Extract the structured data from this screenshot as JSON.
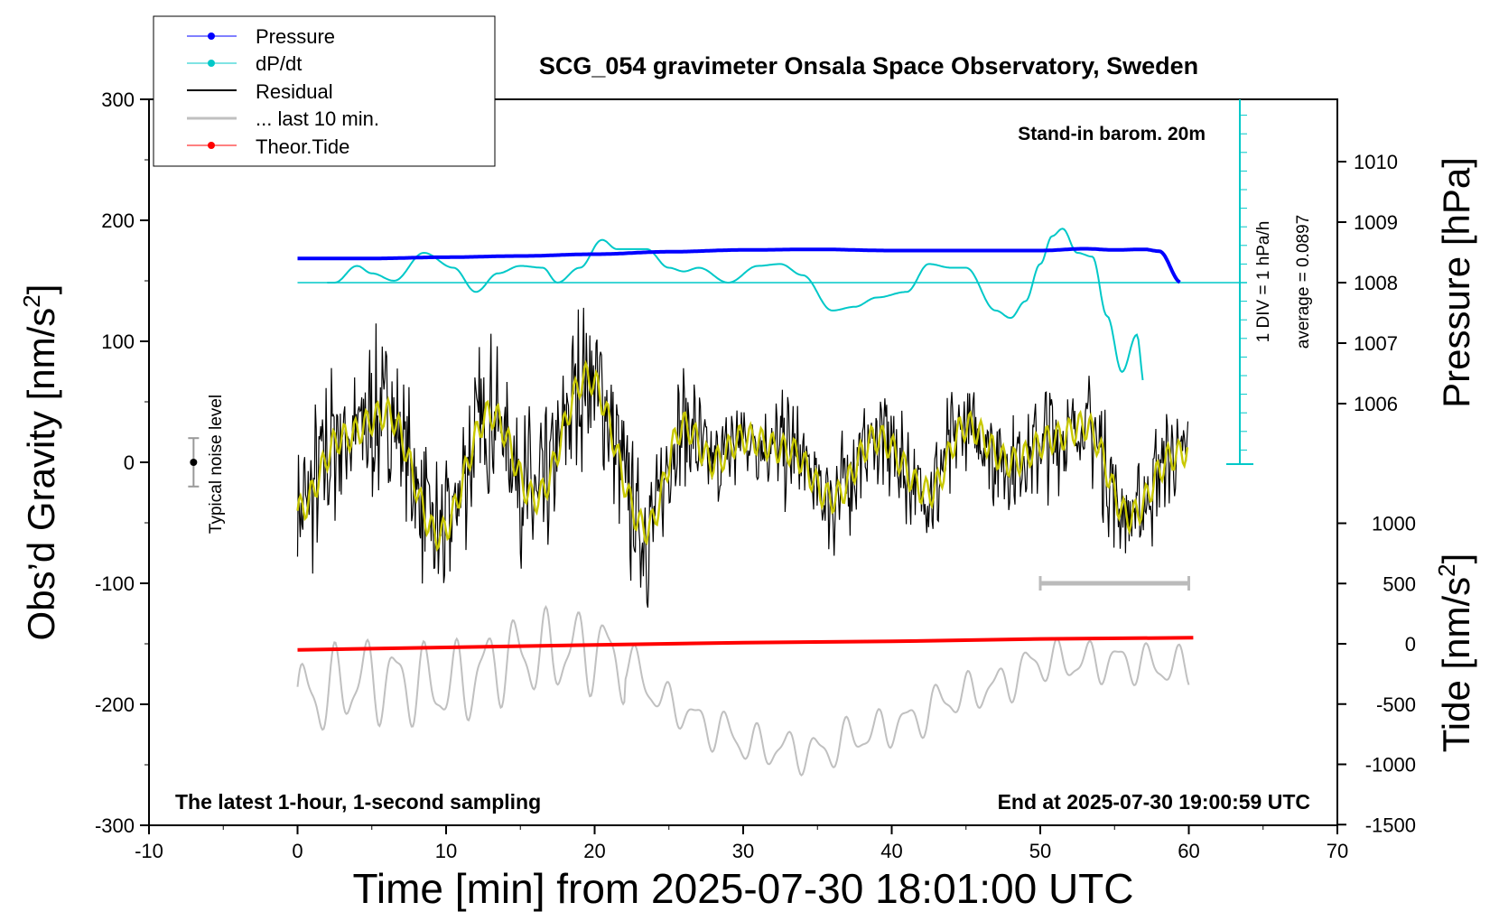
{
  "chart_data": {
    "type": "line",
    "title": "SCG_054 gravimeter Onsala Space Observatory, Sweden",
    "xlabel": "Time [min] from 2025-07-30 18:01:00 UTC",
    "ylabel": "Obs’d Gravity [nm/s2]",
    "ylabel_main": "Obs’d Gravity [nm/s",
    "ylabel_sup": "2",
    "ylabel_close": "]",
    "right_ylabel_pressure": "Pressure [hPa]",
    "right_ylabel_tide": "Tide [nm/s2]",
    "tide_label_main": "Tide [nm/s",
    "tide_label_sup": "2",
    "tide_label_close": "]",
    "xlim": [
      -10,
      70
    ],
    "ylim": [
      -300,
      300
    ],
    "x_ticks": [
      "-10",
      "0",
      "10",
      "20",
      "30",
      "40",
      "50",
      "60",
      "70"
    ],
    "y_ticks": [
      "300",
      "200",
      "100",
      "0",
      "-100",
      "-200",
      "-300"
    ],
    "pressure_ticks": [
      "1010",
      "1009",
      "1008",
      "1007",
      "1006"
    ],
    "tide_ticks": [
      "1000",
      "500",
      "0",
      "-500",
      "-1000",
      "-1500"
    ],
    "annotations": {
      "barometer": "Stand-in barom. 20m",
      "dpdt_scale": "1 DIV = 1 hPa/h",
      "dpdt_average": "average = 0.0897",
      "noise": "Typical noise level",
      "latest": "The latest 1-hour, 1-second sampling",
      "end": "End at 2025-07-30 19:00:59 UTC"
    },
    "legend": {
      "placement": "top-left",
      "entries": [
        "Pressure",
        "dP/dt",
        "Residual",
        "... last 10 min.",
        "Theor.Tide"
      ]
    },
    "series": [
      {
        "name": "Pressure",
        "unit": "hPa",
        "color": "#0000ff",
        "x": [
          0,
          5,
          10,
          15,
          20,
          25,
          30,
          35,
          40,
          45,
          50,
          53,
          55,
          57,
          58,
          59.5
        ],
        "y": [
          1008.4,
          1008.4,
          1008.42,
          1008.44,
          1008.47,
          1008.51,
          1008.54,
          1008.55,
          1008.53,
          1008.53,
          1008.53,
          1008.56,
          1008.54,
          1008.55,
          1008.52,
          1008.0
        ]
      },
      {
        "name": "dP/dt",
        "unit": "div",
        "color": "#00c8c8",
        "x": [
          2,
          2.5,
          4,
          5,
          6.5,
          8.5,
          10.5,
          12,
          13.5,
          15,
          16.5,
          17.5,
          19,
          20.5,
          21.5,
          23.5,
          25,
          26,
          27,
          29,
          31,
          32.5,
          34,
          36,
          37.5,
          39,
          41,
          42.5,
          44,
          45,
          47,
          48,
          49,
          50,
          50.8,
          51.5,
          52.5,
          53.5,
          54.5,
          55.5,
          56.5,
          57
        ],
        "y": [
          0,
          0,
          0.9,
          0.5,
          0.1,
          1.6,
          0.8,
          -0.5,
          0.5,
          0.9,
          0.8,
          0,
          0.8,
          2.3,
          1.8,
          1.8,
          0.8,
          0.6,
          0.8,
          0,
          0.9,
          1.0,
          0.4,
          -1.5,
          -1.3,
          -0.8,
          -0.5,
          1.0,
          0.8,
          0.8,
          -1.5,
          -1.9,
          -1.0,
          1.0,
          2.5,
          2.9,
          1.6,
          1.4,
          -1.8,
          -4.8,
          -2.8,
          -5.5
        ]
      },
      {
        "name": "Residual",
        "unit": "nm/s2",
        "color": "#000000",
        "envelope_x": [
          0,
          3,
          6,
          9.5,
          13,
          16,
          19.5,
          23.5,
          26,
          28,
          30,
          33,
          36,
          39,
          42.5,
          45,
          48,
          51,
          53,
          56,
          59,
          60
        ],
        "envelope_y": [
          -40,
          20,
          40,
          -60,
          40,
          -30,
          70,
          -55,
          30,
          0,
          20,
          10,
          -30,
          20,
          -25,
          30,
          0,
          20,
          30,
          -45,
          5,
          10
        ]
      },
      {
        "name": "Smoothed residual",
        "unit": "nm/s2",
        "color": "#c8c800",
        "x": [
          0,
          3,
          6,
          9.5,
          13,
          16,
          19.5,
          23.5,
          26,
          28,
          30,
          33,
          36,
          39,
          42.5,
          45,
          48,
          51,
          53,
          56,
          59,
          60
        ],
        "y": [
          -40,
          20,
          40,
          -60,
          40,
          -30,
          70,
          -55,
          30,
          0,
          20,
          10,
          -30,
          20,
          -25,
          30,
          0,
          20,
          30,
          -45,
          5,
          10
        ]
      },
      {
        "name": "... last 10 min.",
        "unit": "nm/s2",
        "color": "#c0c0c0",
        "envelope_x": [
          0,
          5,
          10,
          15,
          20,
          22,
          25,
          28,
          31,
          35,
          38,
          41,
          44,
          47,
          50,
          55,
          60
        ],
        "envelope_y": [
          -195,
          -180,
          -185,
          -160,
          -155,
          -165,
          -200,
          -220,
          -235,
          -240,
          -225,
          -215,
          -195,
          -185,
          -165,
          -165,
          -170
        ]
      },
      {
        "name": "Theor.Tide",
        "unit": "nm/s2",
        "color": "#ff0000",
        "x": [
          0,
          10,
          20,
          30,
          40,
          50,
          60.3
        ],
        "y": [
          -155,
          -153,
          -151,
          -149,
          -148,
          -146,
          -145
        ]
      },
      {
        "name": "10-min scale bar",
        "color": "#bbbbbb",
        "x": [
          50,
          60
        ],
        "y": [
          -100,
          -100
        ]
      },
      {
        "name": "Typical noise level",
        "color": "#000000",
        "x": [
          -7
        ],
        "y": [
          0
        ],
        "error": [
          20
        ]
      }
    ]
  },
  "colors": {
    "pressure": "#0000ff",
    "dpdt": "#00c8c8",
    "residual": "#000000",
    "last10": "#c0c0c0",
    "smoothed": "#c8c800",
    "tide": "#ff0000",
    "scalebar": "#bbbbbb"
  }
}
